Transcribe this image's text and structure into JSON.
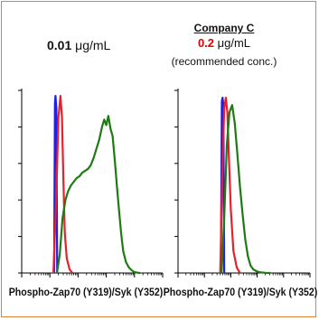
{
  "colors": {
    "frame": "#e0813a",
    "blue": "#1f1fe6",
    "red": "#e8202a",
    "green": "#1f7a14",
    "axis": "#000000",
    "conc_highlight": "#e00000"
  },
  "panels": [
    {
      "concentration_value": "0.01",
      "concentration_unit": " μg/mL",
      "xlabel": "Phospho-Zap70 (Y319)/Syk (Y352)"
    },
    {
      "company": "Company C",
      "concentration_value": "0.2",
      "concentration_unit": " μg/mL",
      "note": "(recommended conc.)",
      "xlabel": "Phospho-Zap70 (Y319)/Syk (Y352)"
    }
  ],
  "chart_data": [
    {
      "type": "line",
      "xlabel": "Phospho-Zap70 (Y319)/Syk (Y352)",
      "xlim": [
        0,
        100
      ],
      "ylim": [
        0,
        100
      ],
      "series": [
        {
          "color": "blue",
          "x": [
            23,
            23.6,
            24.0,
            24.6,
            25.2
          ],
          "y": [
            0,
            93,
            97,
            90,
            0
          ]
        },
        {
          "color": "red",
          "x": [
            22.5,
            24.5,
            26.0,
            27.5,
            28.6,
            29.6,
            30.6,
            32.0,
            34.0,
            36.0
          ],
          "y": [
            0,
            40,
            85,
            97,
            85,
            50,
            22,
            8,
            2,
            0
          ]
        },
        {
          "color": "green",
          "x": [
            25,
            27,
            29,
            31,
            33,
            35,
            37,
            39,
            41,
            43,
            45,
            47,
            49,
            51,
            53,
            55,
            57,
            58.5,
            60,
            61.5,
            63,
            64.5,
            66,
            67.5,
            69,
            70.5,
            72,
            74,
            76,
            78,
            80,
            82,
            84
          ],
          "y": [
            0,
            10,
            30,
            40,
            45,
            48,
            50,
            52,
            53,
            55,
            56,
            57,
            59,
            63,
            68,
            73,
            80,
            84,
            81,
            86,
            79,
            75,
            62,
            48,
            35,
            22,
            12,
            6,
            3,
            1.5,
            0.5,
            0.2,
            0
          ]
        }
      ]
    },
    {
      "type": "line",
      "xlabel": "Phospho-Zap70 (Y319)/Syk (Y352)",
      "xlim": [
        0,
        100
      ],
      "ylim": [
        0,
        100
      ],
      "series": [
        {
          "color": "blue",
          "x": [
            32.5,
            33.2,
            33.8,
            34.4,
            35.0
          ],
          "y": [
            0,
            94,
            96,
            92,
            0
          ]
        },
        {
          "color": "red",
          "x": [
            32.0,
            33.8,
            35.0,
            36.2,
            37.4,
            38.6,
            40.0,
            42.0,
            44.5,
            47.0
          ],
          "y": [
            0,
            60,
            90,
            96,
            88,
            62,
            35,
            12,
            3,
            0
          ]
        },
        {
          "color": "green",
          "x": [
            33.0,
            35.0,
            37.0,
            39.0,
            41.0,
            43.0,
            45.0,
            47.0,
            49.0,
            51.0,
            53.0,
            55.0,
            57.0,
            60.0,
            63.0,
            66.0,
            70.0
          ],
          "y": [
            0,
            30,
            70,
            88,
            92,
            82,
            65,
            47,
            32,
            18,
            9,
            4,
            2,
            0.8,
            0.3,
            0.1,
            0
          ]
        }
      ]
    }
  ]
}
